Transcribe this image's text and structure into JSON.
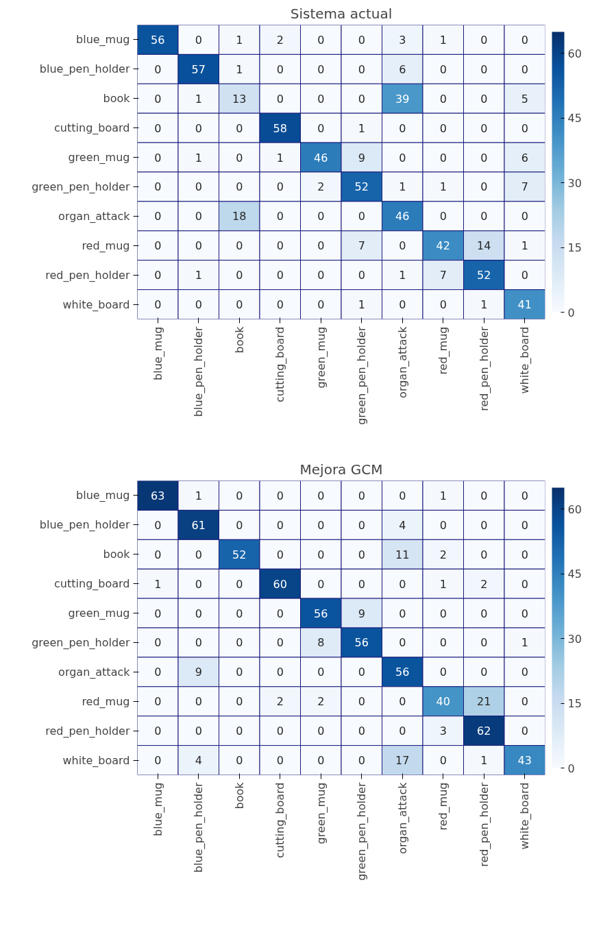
{
  "chart_data": [
    {
      "type": "heatmap",
      "title": "Sistema actual",
      "categories": [
        "blue_mug",
        "blue_pen_holder",
        "book",
        "cutting_board",
        "green_mug",
        "green_pen_holder",
        "organ_attack",
        "red_mug",
        "red_pen_holder",
        "white_board"
      ],
      "y_categories": [
        "blue_mug",
        "blue_pen_holder",
        "book",
        "cutting_board",
        "green_mug",
        "green_pen_holder",
        "organ_attack",
        "red_mug",
        "red_pen_holder",
        "white_board"
      ],
      "cells": [
        [
          56,
          0,
          1,
          2,
          0,
          0,
          3,
          1,
          0,
          0
        ],
        [
          0,
          57,
          1,
          0,
          0,
          0,
          6,
          0,
          0,
          0
        ],
        [
          0,
          1,
          13,
          0,
          0,
          0,
          39,
          0,
          0,
          5
        ],
        [
          0,
          0,
          0,
          58,
          0,
          1,
          0,
          0,
          0,
          0
        ],
        [
          0,
          1,
          0,
          1,
          46,
          9,
          0,
          0,
          0,
          6
        ],
        [
          0,
          0,
          0,
          0,
          2,
          52,
          1,
          1,
          0,
          7
        ],
        [
          0,
          0,
          18,
          0,
          0,
          0,
          46,
          0,
          0,
          0
        ],
        [
          0,
          0,
          0,
          0,
          0,
          7,
          0,
          42,
          14,
          1
        ],
        [
          0,
          1,
          0,
          0,
          0,
          0,
          1,
          7,
          52,
          0
        ],
        [
          0,
          0,
          0,
          0,
          0,
          1,
          0,
          0,
          1,
          41
        ]
      ],
      "clim": [
        0,
        65
      ],
      "cticks": [
        0,
        15,
        30,
        45,
        60
      ],
      "data_labels": true
    },
    {
      "type": "heatmap",
      "title": "Mejora GCM",
      "categories": [
        "blue_mug",
        "blue_pen_holder",
        "book",
        "cutting_board",
        "green_mug",
        "green_pen_holder",
        "organ_attack",
        "red_mug",
        "red_pen_holder",
        "white_board"
      ],
      "y_categories": [
        "blue_mug",
        "blue_pen_holder",
        "book",
        "cutting_board",
        "green_mug",
        "green_pen_holder",
        "organ_attack",
        "red_mug",
        "red_pen_holder",
        "white_board"
      ],
      "cells": [
        [
          63,
          1,
          0,
          0,
          0,
          0,
          0,
          1,
          0,
          0
        ],
        [
          0,
          61,
          0,
          0,
          0,
          0,
          4,
          0,
          0,
          0
        ],
        [
          0,
          0,
          52,
          0,
          0,
          0,
          11,
          2,
          0,
          0
        ],
        [
          1,
          0,
          0,
          60,
          0,
          0,
          0,
          1,
          2,
          0
        ],
        [
          0,
          0,
          0,
          0,
          56,
          9,
          0,
          0,
          0,
          0
        ],
        [
          0,
          0,
          0,
          0,
          8,
          56,
          0,
          0,
          0,
          1
        ],
        [
          0,
          9,
          0,
          0,
          0,
          0,
          56,
          0,
          0,
          0
        ],
        [
          0,
          0,
          0,
          2,
          2,
          0,
          0,
          40,
          21,
          0
        ],
        [
          0,
          0,
          0,
          0,
          0,
          0,
          0,
          3,
          62,
          0
        ],
        [
          0,
          4,
          0,
          0,
          0,
          0,
          17,
          0,
          1,
          43
        ]
      ],
      "clim": [
        0,
        65
      ],
      "cticks": [
        0,
        15,
        30,
        45,
        60
      ],
      "data_labels": true
    }
  ]
}
